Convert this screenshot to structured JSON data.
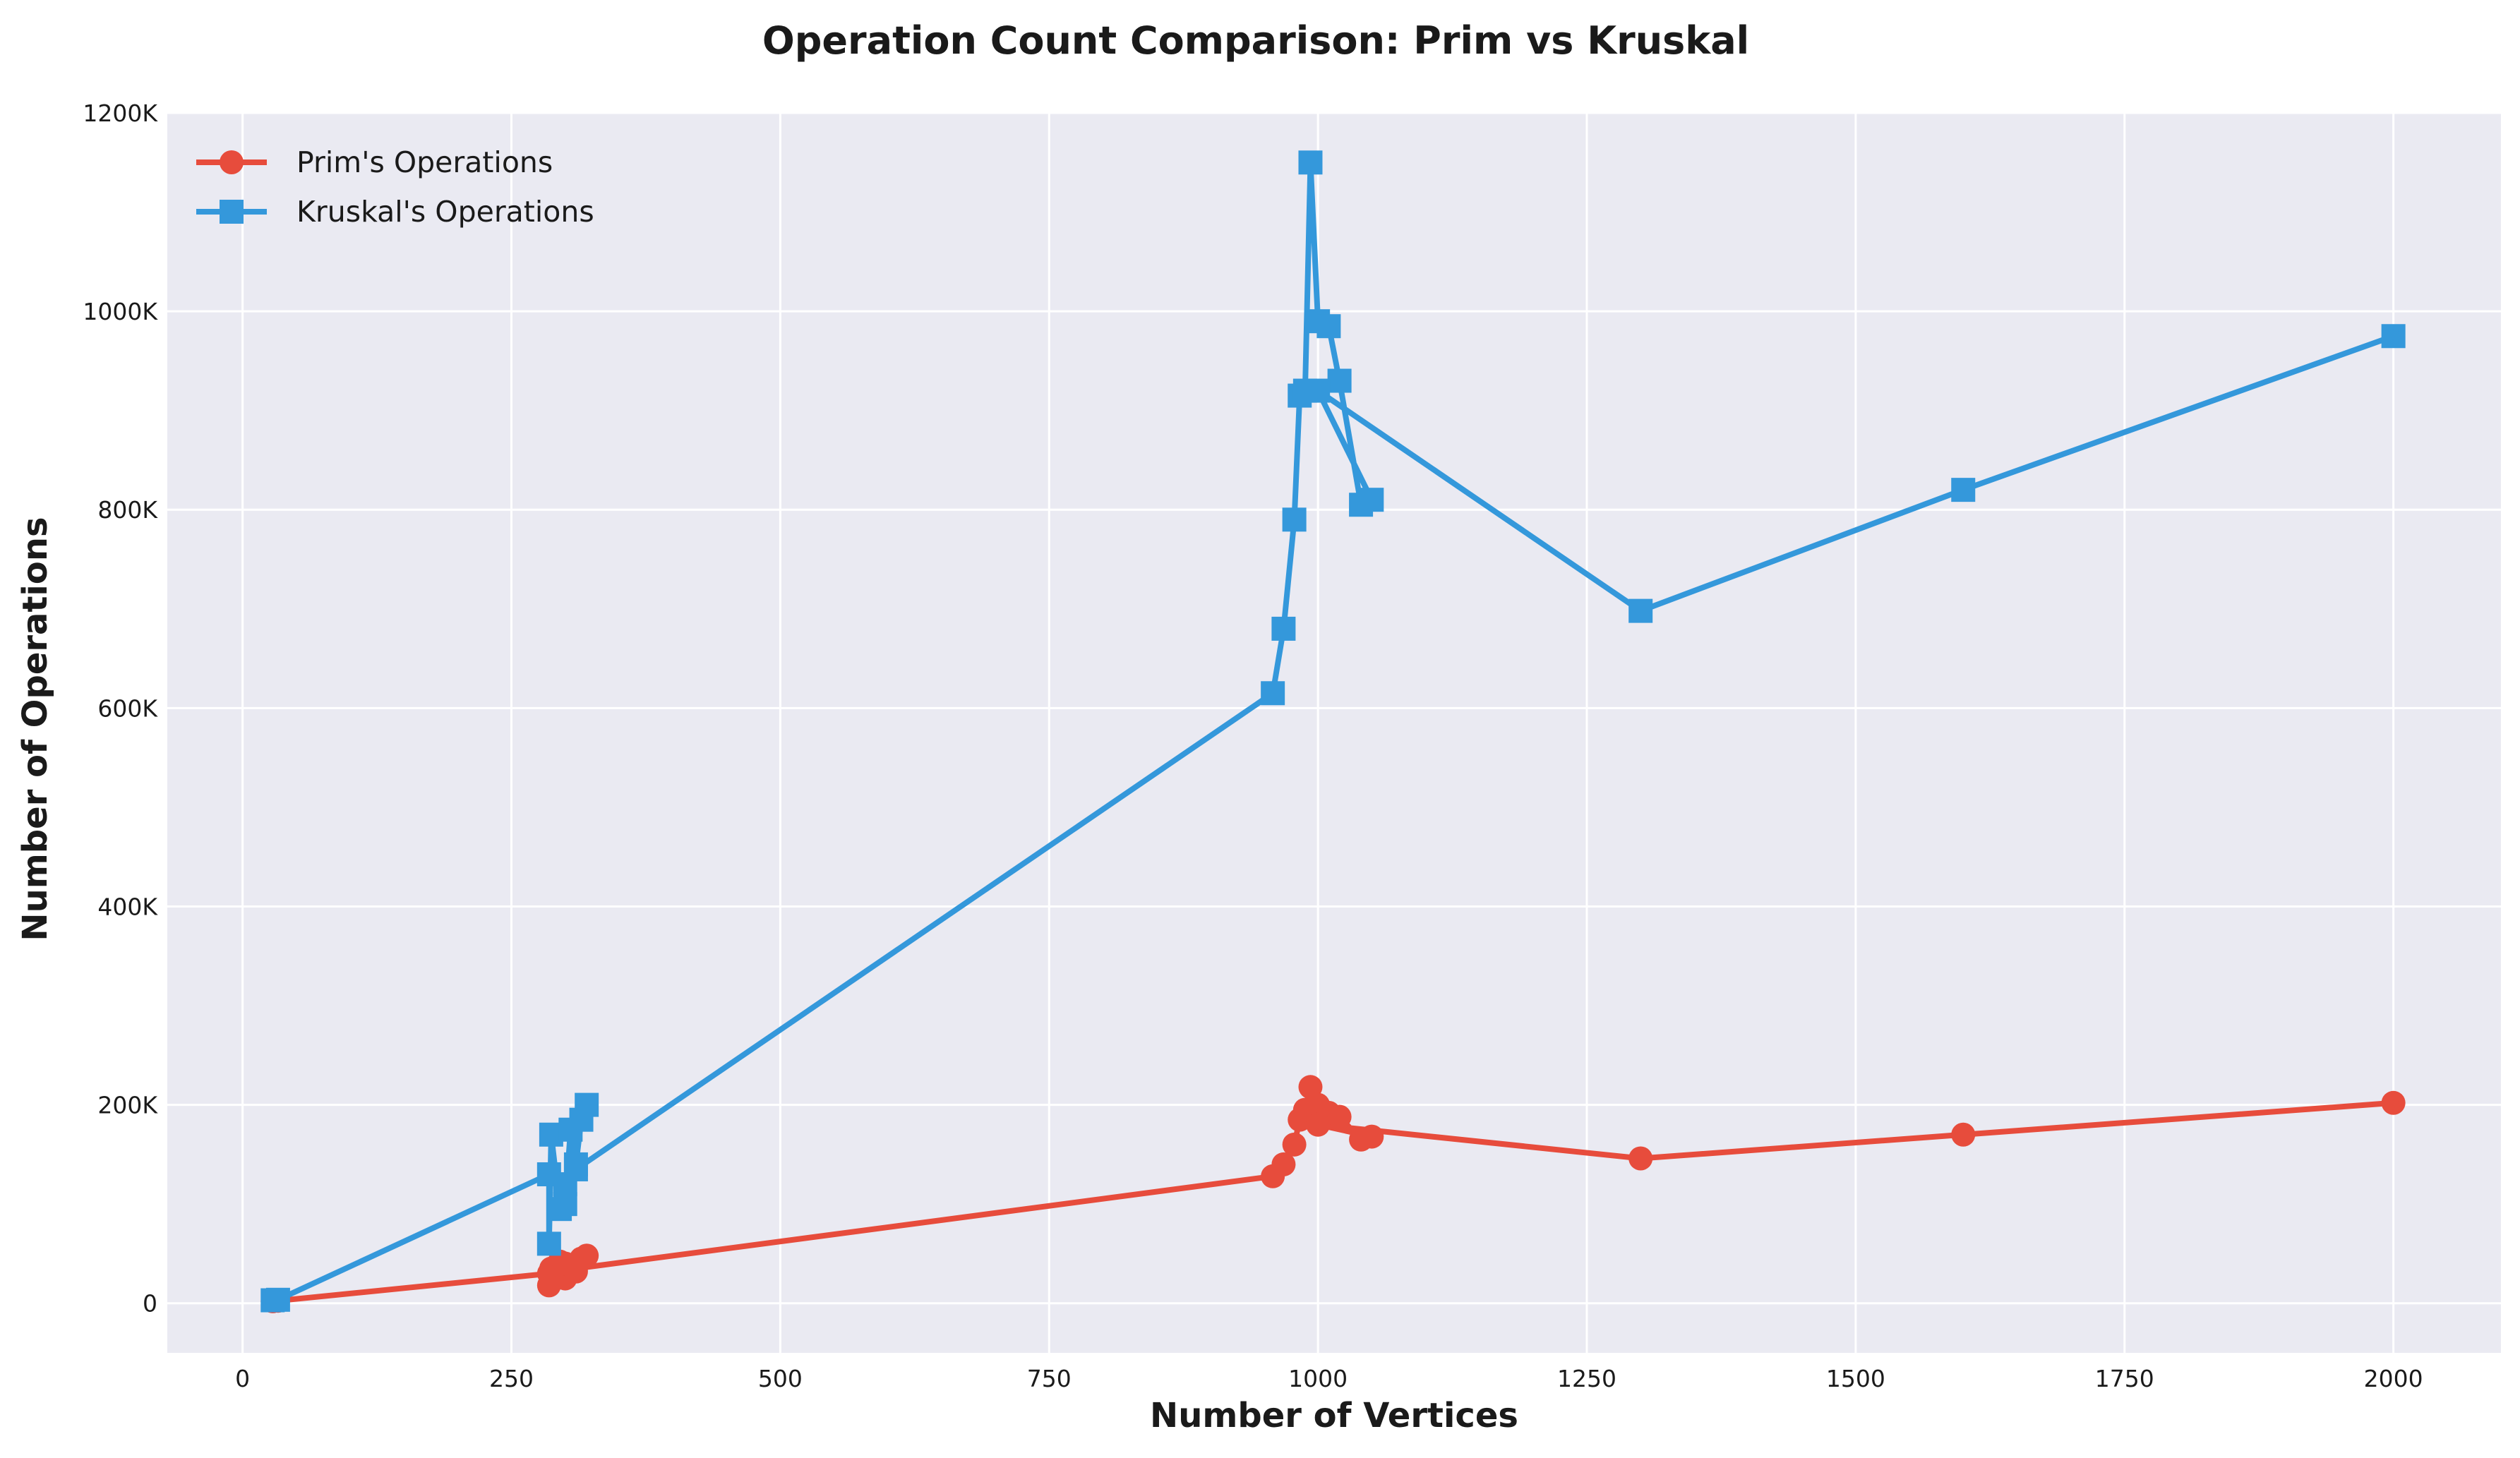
{
  "chart_data": {
    "type": "line",
    "title": "Operation Count Comparison: Prim vs Kruskal",
    "xlabel": "Number of Vertices",
    "ylabel": "Number of Operations",
    "xlim": [
      -70,
      2100
    ],
    "ylim": [
      -50000,
      1200000
    ],
    "x_ticks": [
      0,
      250,
      500,
      750,
      1000,
      1250,
      1500,
      1750,
      2000
    ],
    "x_tick_labels": [
      "0",
      "250",
      "500",
      "750",
      "1000",
      "1250",
      "1500",
      "1750",
      "2000"
    ],
    "y_ticks": [
      0,
      200000,
      400000,
      600000,
      800000,
      1000000,
      1200000
    ],
    "y_tick_labels": [
      "0",
      "200K",
      "400K",
      "600K",
      "800K",
      "1000K",
      "1200K"
    ],
    "grid": true,
    "legend_position": "top-left",
    "series": [
      {
        "name": "Prim's Operations",
        "color": "#e74c3c",
        "marker": "circle",
        "points": [
          [
            28,
            2000
          ],
          [
            33,
            2500
          ],
          [
            285,
            30000
          ],
          [
            285,
            18000
          ],
          [
            287,
            35000
          ],
          [
            295,
            42000
          ],
          [
            300,
            25000
          ],
          [
            305,
            38000
          ],
          [
            310,
            32000
          ],
          [
            315,
            45000
          ],
          [
            320,
            48000
          ],
          [
            300,
            40000
          ],
          [
            310,
            35000
          ],
          [
            958,
            128000
          ],
          [
            968,
            140000
          ],
          [
            978,
            160000
          ],
          [
            983,
            185000
          ],
          [
            988,
            195000
          ],
          [
            993,
            218000
          ],
          [
            1000,
            200000
          ],
          [
            1010,
            192000
          ],
          [
            1020,
            188000
          ],
          [
            1040,
            165000
          ],
          [
            1050,
            168000
          ],
          [
            1000,
            180000
          ],
          [
            1300,
            146000
          ],
          [
            1600,
            170000
          ],
          [
            2000,
            202000
          ]
        ]
      },
      {
        "name": "Kruskal's Operations",
        "color": "#3498db",
        "marker": "square",
        "points": [
          [
            28,
            3000
          ],
          [
            33,
            3500
          ],
          [
            285,
            130000
          ],
          [
            285,
            60000
          ],
          [
            287,
            170000
          ],
          [
            295,
            95000
          ],
          [
            300,
            100000
          ],
          [
            305,
            175000
          ],
          [
            310,
            140000
          ],
          [
            315,
            185000
          ],
          [
            320,
            200000
          ],
          [
            300,
            120000
          ],
          [
            310,
            135000
          ],
          [
            958,
            615000
          ],
          [
            968,
            680000
          ],
          [
            978,
            790000
          ],
          [
            983,
            915000
          ],
          [
            988,
            920000
          ],
          [
            993,
            1150000
          ],
          [
            1000,
            990000
          ],
          [
            1010,
            985000
          ],
          [
            1020,
            930000
          ],
          [
            1040,
            805000
          ],
          [
            1050,
            810000
          ],
          [
            1000,
            920000
          ],
          [
            1300,
            698000
          ],
          [
            1600,
            820000
          ],
          [
            2000,
            975000
          ]
        ]
      }
    ]
  }
}
